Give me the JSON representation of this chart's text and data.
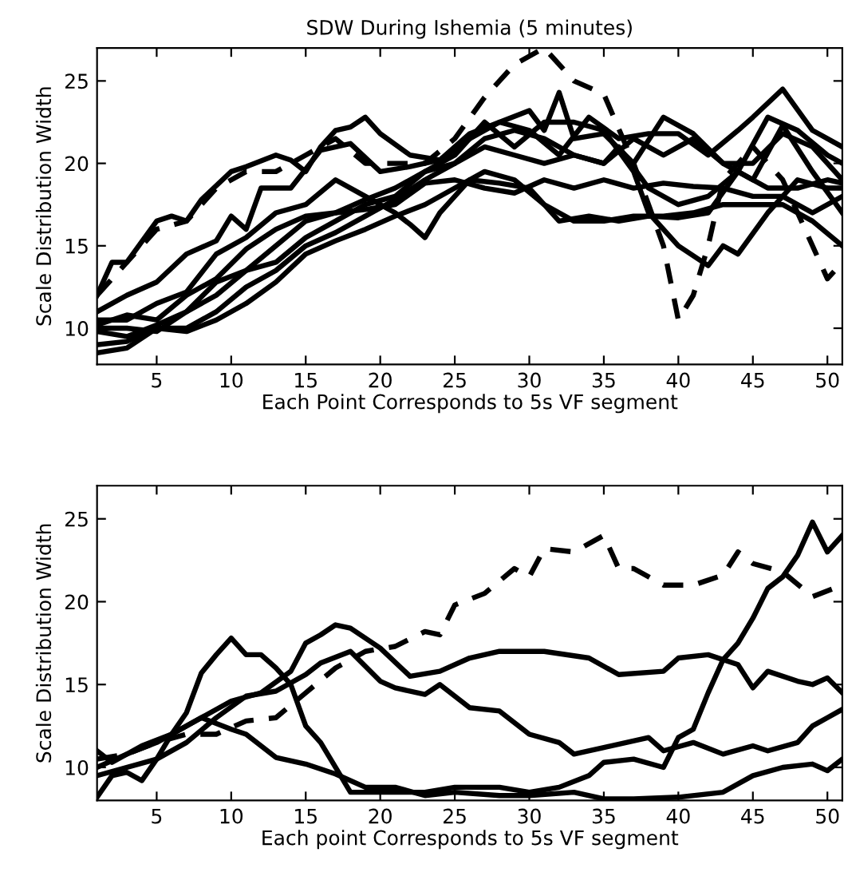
{
  "chart_data": [
    {
      "type": "line",
      "title": "SDW During Ishemia (5 minutes)",
      "xlabel": "Each Point Corresponds to 5s VF segment",
      "ylabel": "Scale Distribution Width",
      "xlim": [
        1,
        51
      ],
      "ylim": [
        7.8,
        27
      ],
      "xticks": [
        5,
        10,
        15,
        20,
        25,
        30,
        35,
        40,
        45,
        50
      ],
      "yticks": [
        10,
        15,
        20,
        25
      ],
      "grid": false,
      "marker": "none",
      "series": [
        {
          "color": "#000000",
          "line_style": "dashed",
          "x": [
            1,
            3,
            5,
            7,
            9,
            11,
            13,
            15,
            17,
            19,
            21,
            23,
            25,
            27,
            29,
            31,
            33,
            35,
            37,
            39,
            40,
            41,
            42,
            43,
            45,
            47,
            49,
            50,
            51
          ],
          "values": [
            12,
            14,
            16,
            16.5,
            18.5,
            19.5,
            19.5,
            20.5,
            21.5,
            20,
            20,
            20,
            21.5,
            24,
            26,
            27,
            25,
            24.2,
            20,
            15,
            10.5,
            12,
            15,
            19,
            21,
            19,
            15,
            13,
            14
          ]
        },
        {
          "color": "#000000",
          "line_style": "solid",
          "x": [
            1,
            2,
            3,
            5,
            6,
            7,
            8,
            10,
            11,
            13,
            14,
            15,
            16,
            17,
            18,
            19,
            20,
            22,
            24,
            26,
            28,
            30,
            32,
            34,
            36,
            38,
            40,
            42,
            44,
            45,
            47,
            49,
            51
          ],
          "values": [
            12,
            14,
            14,
            16.5,
            16.8,
            16.5,
            17.8,
            19.5,
            19.8,
            20.5,
            20.2,
            19.5,
            21,
            22,
            22.2,
            22.8,
            21.8,
            20.5,
            20.2,
            21.5,
            22.5,
            22,
            20.5,
            22.8,
            21.5,
            21.8,
            21.8,
            20.5,
            22,
            22.8,
            24.5,
            22,
            21
          ]
        },
        {
          "color": "#000000",
          "line_style": "solid",
          "x": [
            1,
            3,
            5,
            7,
            9,
            10,
            11,
            12,
            14,
            16,
            18,
            20,
            22,
            24,
            26,
            28,
            30,
            31,
            32,
            33,
            35,
            37,
            39,
            41,
            43,
            45,
            47,
            49,
            51
          ],
          "values": [
            11,
            12,
            12.8,
            14.5,
            15.3,
            16.8,
            16,
            18.5,
            18.5,
            20.8,
            21.2,
            19.5,
            19.8,
            20.2,
            21.8,
            22.5,
            23.2,
            22,
            24.3,
            21.5,
            21.8,
            20,
            22.8,
            21.8,
            20,
            20,
            21.8,
            21,
            19
          ]
        },
        {
          "color": "#000000",
          "line_style": "solid",
          "x": [
            1,
            3,
            5,
            7,
            9,
            11,
            13,
            15,
            17,
            19,
            21,
            22,
            23,
            24,
            26,
            28,
            30,
            32,
            34,
            36,
            38,
            40,
            42,
            44,
            46,
            48,
            50,
            51
          ],
          "values": [
            10.5,
            10.5,
            11.5,
            12.2,
            14.5,
            15.5,
            17,
            17.5,
            19,
            18,
            17,
            16.3,
            15.5,
            17,
            19,
            18.8,
            18.5,
            16.5,
            16.8,
            16.5,
            16.8,
            16.7,
            17,
            19.5,
            22.8,
            22,
            20.5,
            20
          ]
        },
        {
          "color": "#000000",
          "line_style": "solid",
          "x": [
            1,
            3,
            5,
            7,
            9,
            11,
            13,
            15,
            17,
            19,
            21,
            23,
            25,
            27,
            29,
            31,
            33,
            35,
            37,
            39,
            41,
            43,
            45,
            47,
            49,
            51
          ],
          "values": [
            10.2,
            10.8,
            10.5,
            12,
            13,
            14.8,
            16,
            16.8,
            17,
            17.2,
            17.5,
            18.8,
            19,
            18.5,
            18.2,
            19,
            18.5,
            19,
            18.5,
            18.8,
            18.6,
            18.5,
            18,
            18,
            17,
            18
          ]
        },
        {
          "color": "#000000",
          "line_style": "solid",
          "x": [
            1,
            3,
            5,
            7,
            9,
            11,
            13,
            15,
            17,
            19,
            21,
            23,
            25,
            27,
            29,
            31,
            33,
            35,
            37,
            38,
            40,
            42,
            43,
            44,
            46,
            48,
            50,
            51
          ],
          "values": [
            9.8,
            9.5,
            10.2,
            11,
            12.8,
            13.5,
            15,
            16.5,
            17,
            17.8,
            18.5,
            19.5,
            20.5,
            22.5,
            21,
            22.5,
            22.5,
            22,
            19.5,
            17,
            15,
            13.8,
            15,
            14.5,
            17,
            19,
            18.5,
            18.5
          ]
        },
        {
          "color": "#000000",
          "line_style": "solid",
          "x": [
            1,
            3,
            5,
            7,
            9,
            11,
            13,
            15,
            17,
            19,
            21,
            23,
            25,
            27,
            29,
            31,
            33,
            35,
            37,
            39,
            41,
            43,
            45,
            47,
            49,
            51
          ],
          "values": [
            9,
            9.2,
            10,
            10,
            11,
            12.5,
            13.5,
            15,
            15.8,
            16.8,
            17.8,
            19,
            20,
            21.5,
            22,
            21.5,
            20.5,
            20,
            21.5,
            20.5,
            21.5,
            20,
            19,
            22.3,
            19.5,
            17
          ]
        },
        {
          "color": "#000000",
          "line_style": "solid",
          "x": [
            1,
            3,
            5,
            7,
            9,
            11,
            13,
            15,
            17,
            19,
            21,
            23,
            25,
            27,
            29,
            31,
            33,
            35,
            37,
            39,
            41,
            43,
            45,
            47,
            49,
            51
          ],
          "values": [
            8.5,
            8.8,
            10,
            9.8,
            10.5,
            11.5,
            12.8,
            14.5,
            15.3,
            16,
            16.8,
            17.5,
            18.5,
            19.5,
            19,
            17.5,
            16.5,
            16.5,
            16.8,
            16.8,
            17,
            17.5,
            17.5,
            17.5,
            16.5,
            15
          ]
        },
        {
          "color": "#000000",
          "line_style": "solid",
          "x": [
            1,
            3,
            5,
            7,
            9,
            11,
            13,
            15,
            17,
            19,
            21,
            23,
            25,
            27,
            29,
            31,
            33,
            35,
            36,
            38,
            40,
            42,
            44,
            46,
            48,
            50,
            51
          ],
          "values": [
            10,
            10,
            9.8,
            11,
            12,
            13.5,
            14,
            15.5,
            16.5,
            17.5,
            18,
            19.5,
            20,
            21,
            20.5,
            20,
            20.5,
            20,
            21,
            18.5,
            17.5,
            18,
            19.5,
            18.5,
            18.5,
            19,
            18.8
          ]
        }
      ]
    },
    {
      "type": "line",
      "xlabel": "Each point Corresponds to 5s VF segment",
      "ylabel": "Scale Distribution Width",
      "xlim": [
        1,
        51
      ],
      "ylim": [
        8,
        27
      ],
      "xticks": [
        5,
        10,
        15,
        20,
        25,
        30,
        35,
        40,
        45,
        50
      ],
      "yticks": [
        10,
        15,
        20,
        25
      ],
      "grid": false,
      "marker": "none",
      "series": [
        {
          "color": "#000000",
          "line_style": "dashed",
          "x": [
            1,
            3,
            5,
            7,
            9,
            11,
            13,
            15,
            17,
            19,
            21,
            23,
            24,
            25,
            27,
            29,
            30,
            31,
            33,
            35,
            36,
            37,
            39,
            41,
            43,
            44,
            45,
            47,
            49,
            51
          ],
          "values": [
            10.5,
            10.8,
            11.5,
            12,
            12,
            12.8,
            13,
            14.5,
            16,
            17,
            17.3,
            18.2,
            18,
            19.8,
            20.5,
            22,
            21.5,
            23.2,
            23,
            24,
            22,
            22,
            21,
            21,
            21.6,
            23,
            22.3,
            21.8,
            20.3,
            21
          ]
        },
        {
          "color": "#000000",
          "line_style": "solid",
          "x": [
            1,
            2,
            3,
            4,
            5,
            6,
            7,
            8,
            9,
            10,
            11,
            12,
            13,
            14,
            15,
            16,
            17,
            18,
            20,
            23,
            25,
            28,
            30,
            32,
            34,
            35,
            37,
            39,
            40,
            41,
            42,
            43,
            44,
            45,
            46,
            47,
            48,
            49,
            50,
            51
          ],
          "values": [
            8.2,
            9.5,
            9.7,
            9.2,
            10.5,
            12,
            13.3,
            15.7,
            16.8,
            17.8,
            16.8,
            16.8,
            16,
            15,
            12.5,
            11.5,
            10,
            8.5,
            8.5,
            8.5,
            8.8,
            8.8,
            8.5,
            8.8,
            9.5,
            10.3,
            10.5,
            10,
            11.8,
            12.3,
            14.5,
            16.5,
            17.5,
            19,
            20.8,
            21.5,
            22.8,
            24.8,
            23,
            24
          ]
        },
        {
          "color": "#000000",
          "line_style": "solid",
          "x": [
            1,
            3,
            5,
            7,
            10,
            12,
            14,
            15,
            16,
            17,
            18,
            20,
            22,
            24,
            26,
            28,
            31,
            34,
            36,
            39,
            40,
            42,
            44,
            45,
            46,
            48,
            49,
            50,
            51
          ],
          "values": [
            10,
            10.8,
            11.5,
            12.5,
            14,
            14.5,
            15.8,
            17.5,
            18,
            18.6,
            18.4,
            17.2,
            15.5,
            15.8,
            16.6,
            17,
            17,
            16.6,
            15.6,
            15.8,
            16.6,
            16.8,
            16.2,
            14.8,
            15.8,
            15.2,
            15,
            15.4,
            14.5
          ]
        },
        {
          "color": "#000000",
          "line_style": "solid",
          "x": [
            1,
            5,
            7,
            9,
            11,
            13,
            15,
            16,
            18,
            20,
            21,
            23,
            24,
            26,
            28,
            30,
            32,
            33,
            35,
            38,
            39,
            41,
            43,
            45,
            46,
            48,
            49,
            50,
            51
          ],
          "values": [
            9.5,
            10.5,
            11.5,
            13,
            14.3,
            14.6,
            15.6,
            16.3,
            17,
            15.2,
            14.8,
            14.4,
            15,
            13.6,
            13.4,
            12,
            11.5,
            10.8,
            11.2,
            11.8,
            11,
            11.5,
            10.8,
            11.3,
            11,
            11.5,
            12.5,
            13,
            13.5
          ]
        },
        {
          "color": "#000000",
          "line_style": "solid",
          "x": [
            1,
            2,
            4,
            6,
            8,
            10,
            11,
            13,
            15,
            17,
            19,
            21,
            23,
            25,
            28,
            30,
            33,
            35,
            37,
            40,
            43,
            45,
            47,
            49,
            50,
            51
          ],
          "values": [
            11,
            10.3,
            11.3,
            12,
            13,
            12.3,
            12,
            10.6,
            10.2,
            9.6,
            8.8,
            8.8,
            8.3,
            8.5,
            8.3,
            8.3,
            8.5,
            8.1,
            8.1,
            8.2,
            8.5,
            9.5,
            10,
            10.2,
            9.8,
            10.5
          ]
        }
      ]
    }
  ]
}
